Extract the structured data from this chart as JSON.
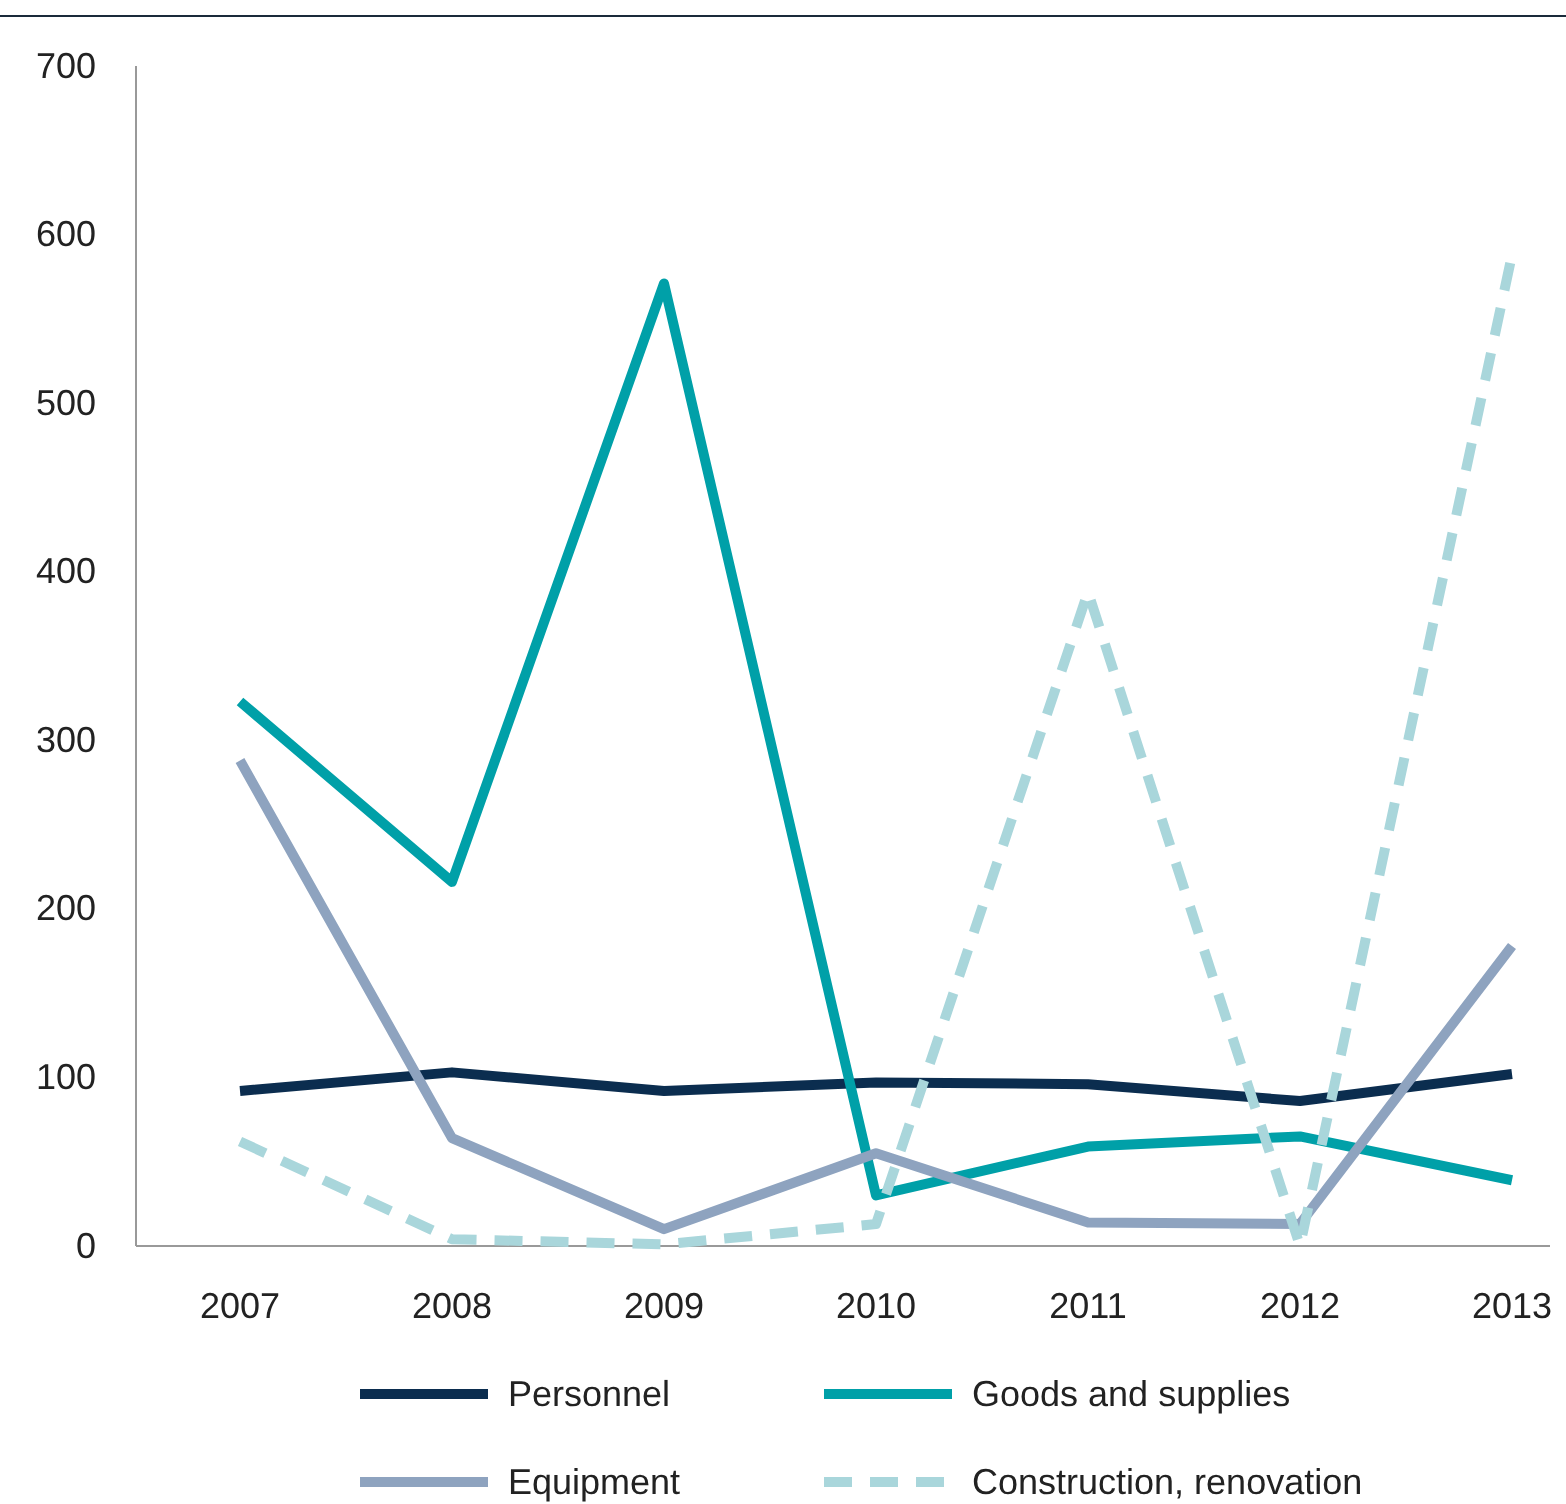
{
  "chart_data": {
    "type": "line",
    "categories": [
      "2007",
      "2008",
      "2009",
      "2010",
      "2011",
      "2012",
      "2013"
    ],
    "series": [
      {
        "name": "Personnel",
        "color": "#0b2d4f",
        "values": [
          92,
          103,
          92,
          97,
          96,
          86,
          102
        ]
      },
      {
        "name": "Goods and supplies",
        "color": "#00a0a8",
        "values": [
          323,
          216,
          571,
          30,
          59,
          65,
          39
        ]
      },
      {
        "name": "Equipment",
        "color": "#8ea3bf",
        "values": [
          288,
          64,
          10,
          55,
          14,
          13,
          178
        ]
      },
      {
        "name": "Construction, renovation",
        "color": "#a9d6db",
        "values": [
          62,
          4,
          1,
          13,
          388,
          0,
          588
        ],
        "line_style": "dashed"
      }
    ],
    "ylim": [
      0,
      700
    ],
    "yticks": [
      0,
      100,
      200,
      300,
      400,
      500,
      600,
      700
    ],
    "grid": false,
    "legend": "bottom",
    "line_style": "solid",
    "marker": "none"
  }
}
